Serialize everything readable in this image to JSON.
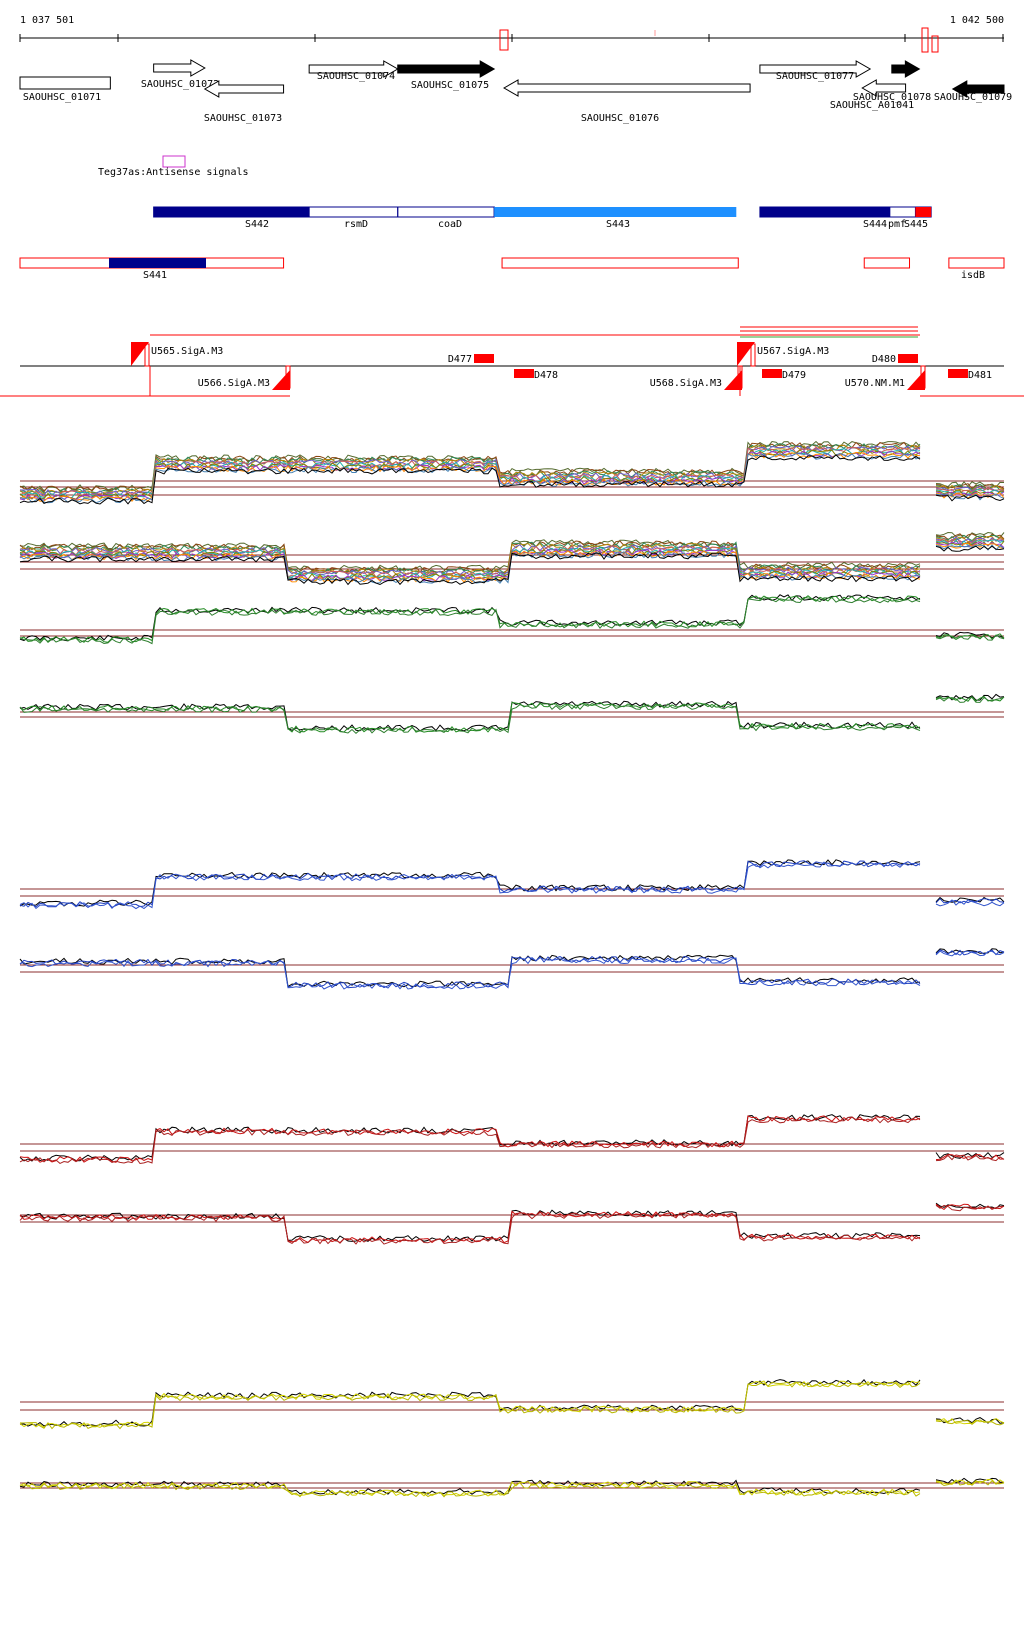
{
  "coords": {
    "left_label": "1 037 501",
    "right_label": "1 042 500",
    "start": 1037501,
    "end": 1042500
  },
  "genes": [
    {
      "label": "SAOUHSC_01071",
      "strand": 0,
      "filled": false,
      "start": 1037501,
      "end": 1037960
    },
    {
      "label": "SAOUHSC_01072",
      "strand": 1,
      "filled": false,
      "start": 1038180,
      "end": 1038440
    },
    {
      "label": "SAOUHSC_01073",
      "strand": -1,
      "filled": false,
      "start": 1038440,
      "end": 1038840
    },
    {
      "label": "SAOUHSC_01074",
      "strand": 1,
      "filled": false,
      "start": 1038970,
      "end": 1039420
    },
    {
      "label": "SAOUHSC_01075",
      "strand": 1,
      "filled": true,
      "start": 1039420,
      "end": 1039910
    },
    {
      "label": "SAOUHSC_01076",
      "strand": -1,
      "filled": false,
      "start": 1039960,
      "end": 1041210
    },
    {
      "label": "SAOUHSC_01077",
      "strand": 1,
      "filled": false,
      "start": 1041260,
      "end": 1041820
    },
    {
      "label": "SAOUHSC_A01041",
      "strand": -1,
      "filled": false,
      "start": 1041780,
      "end": 1042000
    },
    {
      "label": "SAOUHSC_01078",
      "strand": 1,
      "filled": true,
      "start": 1041930,
      "end": 1042070
    },
    {
      "label": "SAOUHSC_01079",
      "strand": -1,
      "filled": true,
      "start": 1042240,
      "end": 1042500
    }
  ],
  "antisense": {
    "label": "Teg37as:Antisense signals",
    "color": "#cc33cc"
  },
  "segments_upper": [
    {
      "label": "S442",
      "start": 1038180,
      "end": 1038970,
      "fill": "#00008b"
    },
    {
      "label": "rsmD",
      "start": 1038970,
      "end": 1039420,
      "fill": "none"
    },
    {
      "label": "coaD",
      "start": 1039420,
      "end": 1039910,
      "fill": "none"
    },
    {
      "label": "S443",
      "start": 1039910,
      "end": 1041140,
      "fill": "#1e90ff"
    },
    {
      "label": "S444",
      "start": 1041260,
      "end": 1041920,
      "fill": "#00008b"
    },
    {
      "label": "pmf",
      "start": 1041920,
      "end": 1042050,
      "fill": "none"
    },
    {
      "label": "S445",
      "start": 1042050,
      "end": 1042130,
      "fill": "#ff0000"
    }
  ],
  "segments_lower": [
    {
      "label": "S441",
      "start": 1037501,
      "end": 1038840,
      "fill": "#00008b"
    },
    {
      "label": "",
      "start": 1039950,
      "end": 1041150,
      "fill": "none"
    },
    {
      "label": "",
      "start": 1041790,
      "end": 1042020,
      "fill": "none"
    },
    {
      "label": "isdB",
      "start": 1042220,
      "end": 1042500,
      "fill": "none"
    }
  ],
  "promoters_top": [
    {
      "label": "U565.SigA.M3",
      "pos": 1038130
    },
    {
      "label": "U567.SigA.M3",
      "pos": 1041220
    }
  ],
  "promoters_bottom": [
    {
      "label": "U566.SigA.M3",
      "pos": 1038840
    },
    {
      "label": "U568.SigA.M3",
      "pos": 1041230
    },
    {
      "label": "U570.NM.M1",
      "pos": 1042130
    }
  ],
  "terminators_top": [
    {
      "label": "D477",
      "pos": 1039740
    },
    {
      "label": "D480",
      "pos": 1042060
    }
  ],
  "terminators_bottom": [
    {
      "label": "D478",
      "pos": 1040030
    },
    {
      "label": "D479",
      "pos": 1041310
    },
    {
      "label": "D481",
      "pos": 1042270
    }
  ],
  "panels": [
    {
      "name": "multi-condition-forward",
      "color": "multi"
    },
    {
      "name": "multi-condition-reverse",
      "color": "multi"
    },
    {
      "name": "green-forward",
      "color": "#228b22"
    },
    {
      "name": "green-reverse",
      "color": "#228b22"
    },
    {
      "name": "blue-forward",
      "color": "#1f3fbf"
    },
    {
      "name": "blue-reverse",
      "color": "#1f3fbf"
    },
    {
      "name": "red-forward",
      "color": "#cc1111"
    },
    {
      "name": "red-reverse",
      "color": "#cc1111"
    },
    {
      "name": "yellow-forward",
      "color": "#d4d400"
    },
    {
      "name": "yellow-reverse",
      "color": "#d4d400"
    }
  ]
}
